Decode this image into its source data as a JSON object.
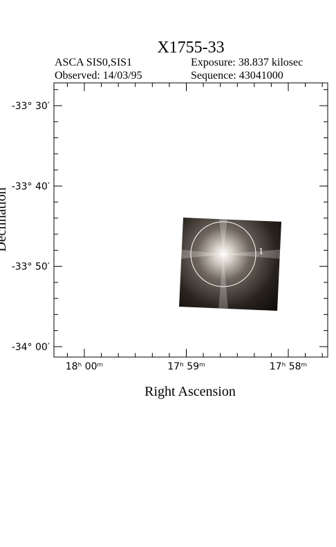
{
  "header": {
    "title": "X1755-33",
    "instrument": "ASCA SIS0,SIS1",
    "exposure": "Exposure: 38.837 kilosec",
    "observed": "Observed: 14/03/95",
    "sequence": "Sequence: 43041000"
  },
  "plot": {
    "y_axis_label": "Declination",
    "x_axis_label": "Right Ascension",
    "y_tick_labels": [
      "-33° 30′",
      "-33° 40′",
      "-33° 50′",
      "-34° 00′"
    ],
    "x_tick_labels": [
      "18ʰ 00ᵐ",
      "17ʰ 59ᵐ",
      "17ʰ 58ᵐ"
    ],
    "region_label": "1"
  }
}
